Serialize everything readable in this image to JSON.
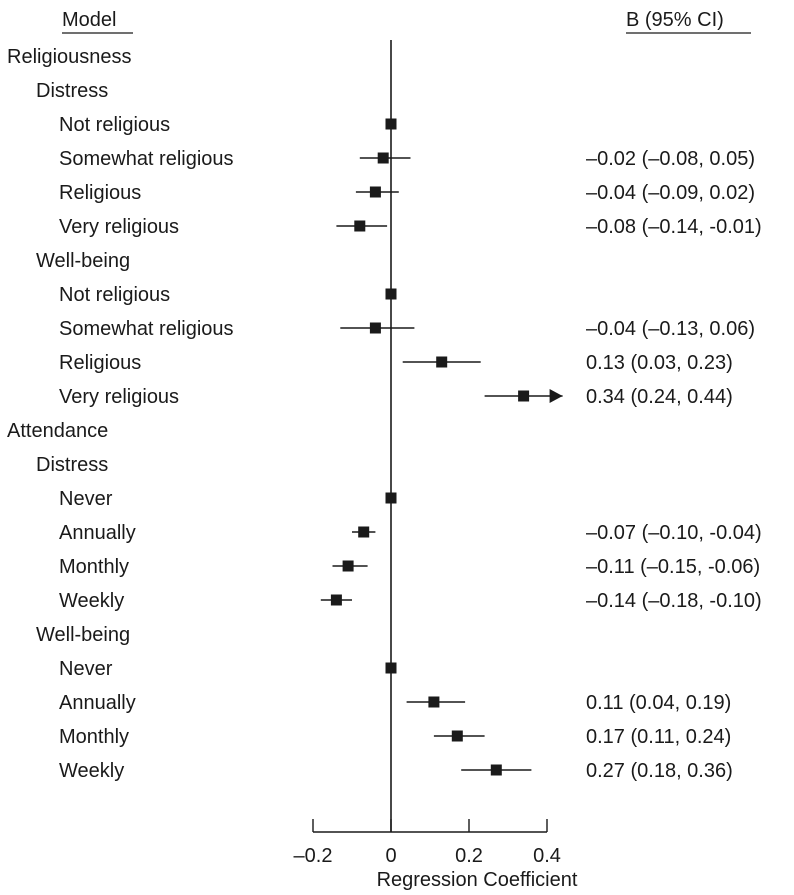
{
  "header": {
    "model_label": "Model",
    "ci_label": "B (95% CI)"
  },
  "chart_data": {
    "type": "forest",
    "xlabel": "Regression Coefficient",
    "xlim": [
      -0.2,
      0.4
    ],
    "xticks": [
      -0.2,
      0,
      0.2,
      0.4
    ],
    "xtick_labels": [
      "–0.2",
      "0",
      "0.2",
      "0.4"
    ],
    "reference_line": 0,
    "rows": [
      {
        "label": "Religiousness",
        "level": 0
      },
      {
        "label": "Distress",
        "level": 1
      },
      {
        "label": "Not religious",
        "level": 2,
        "estimate": 0
      },
      {
        "label": "Somewhat religious",
        "level": 2,
        "estimate": -0.02,
        "lower": -0.08,
        "upper": 0.05,
        "ci_text": "–0.02 (–0.08, 0.05)"
      },
      {
        "label": "Religious",
        "level": 2,
        "estimate": -0.04,
        "lower": -0.09,
        "upper": 0.02,
        "ci_text": "–0.04 (–0.09, 0.02)"
      },
      {
        "label": "Very religious",
        "level": 2,
        "estimate": -0.08,
        "lower": -0.14,
        "upper": -0.01,
        "ci_text": "–0.08 (–0.14, -0.01)"
      },
      {
        "label": "Well-being",
        "level": 1
      },
      {
        "label": "Not religious",
        "level": 2,
        "estimate": 0
      },
      {
        "label": "Somewhat religious",
        "level": 2,
        "estimate": -0.04,
        "lower": -0.13,
        "upper": 0.06,
        "ci_text": "–0.04 (–0.13, 0.06)"
      },
      {
        "label": "Religious",
        "level": 2,
        "estimate": 0.13,
        "lower": 0.03,
        "upper": 0.23,
        "ci_text": "0.13 (0.03, 0.23)"
      },
      {
        "label": "Very religious",
        "level": 2,
        "estimate": 0.34,
        "lower": 0.24,
        "upper": 0.44,
        "ci_text": "0.34 (0.24, 0.44)",
        "truncated_upper": true
      },
      {
        "label": "Attendance",
        "level": 0
      },
      {
        "label": "Distress",
        "level": 1
      },
      {
        "label": "Never",
        "level": 2,
        "estimate": 0
      },
      {
        "label": "Annually",
        "level": 2,
        "estimate": -0.07,
        "lower": -0.1,
        "upper": -0.04,
        "ci_text": "–0.07 (–0.10, -0.04)"
      },
      {
        "label": "Monthly",
        "level": 2,
        "estimate": -0.11,
        "lower": -0.15,
        "upper": -0.06,
        "ci_text": "–0.11 (–0.15, -0.06)"
      },
      {
        "label": "Weekly",
        "level": 2,
        "estimate": -0.14,
        "lower": -0.18,
        "upper": -0.1,
        "ci_text": "–0.14 (–0.18, -0.10)"
      },
      {
        "label": "Well-being",
        "level": 1
      },
      {
        "label": "Never",
        "level": 2,
        "estimate": 0
      },
      {
        "label": "Annually",
        "level": 2,
        "estimate": 0.11,
        "lower": 0.04,
        "upper": 0.19,
        "ci_text": "0.11 (0.04, 0.19)"
      },
      {
        "label": "Monthly",
        "level": 2,
        "estimate": 0.17,
        "lower": 0.11,
        "upper": 0.24,
        "ci_text": "0.17 (0.11, 0.24)"
      },
      {
        "label": "Weekly",
        "level": 2,
        "estimate": 0.27,
        "lower": 0.18,
        "upper": 0.36,
        "ci_text": "0.27 (0.18, 0.36)"
      }
    ]
  }
}
